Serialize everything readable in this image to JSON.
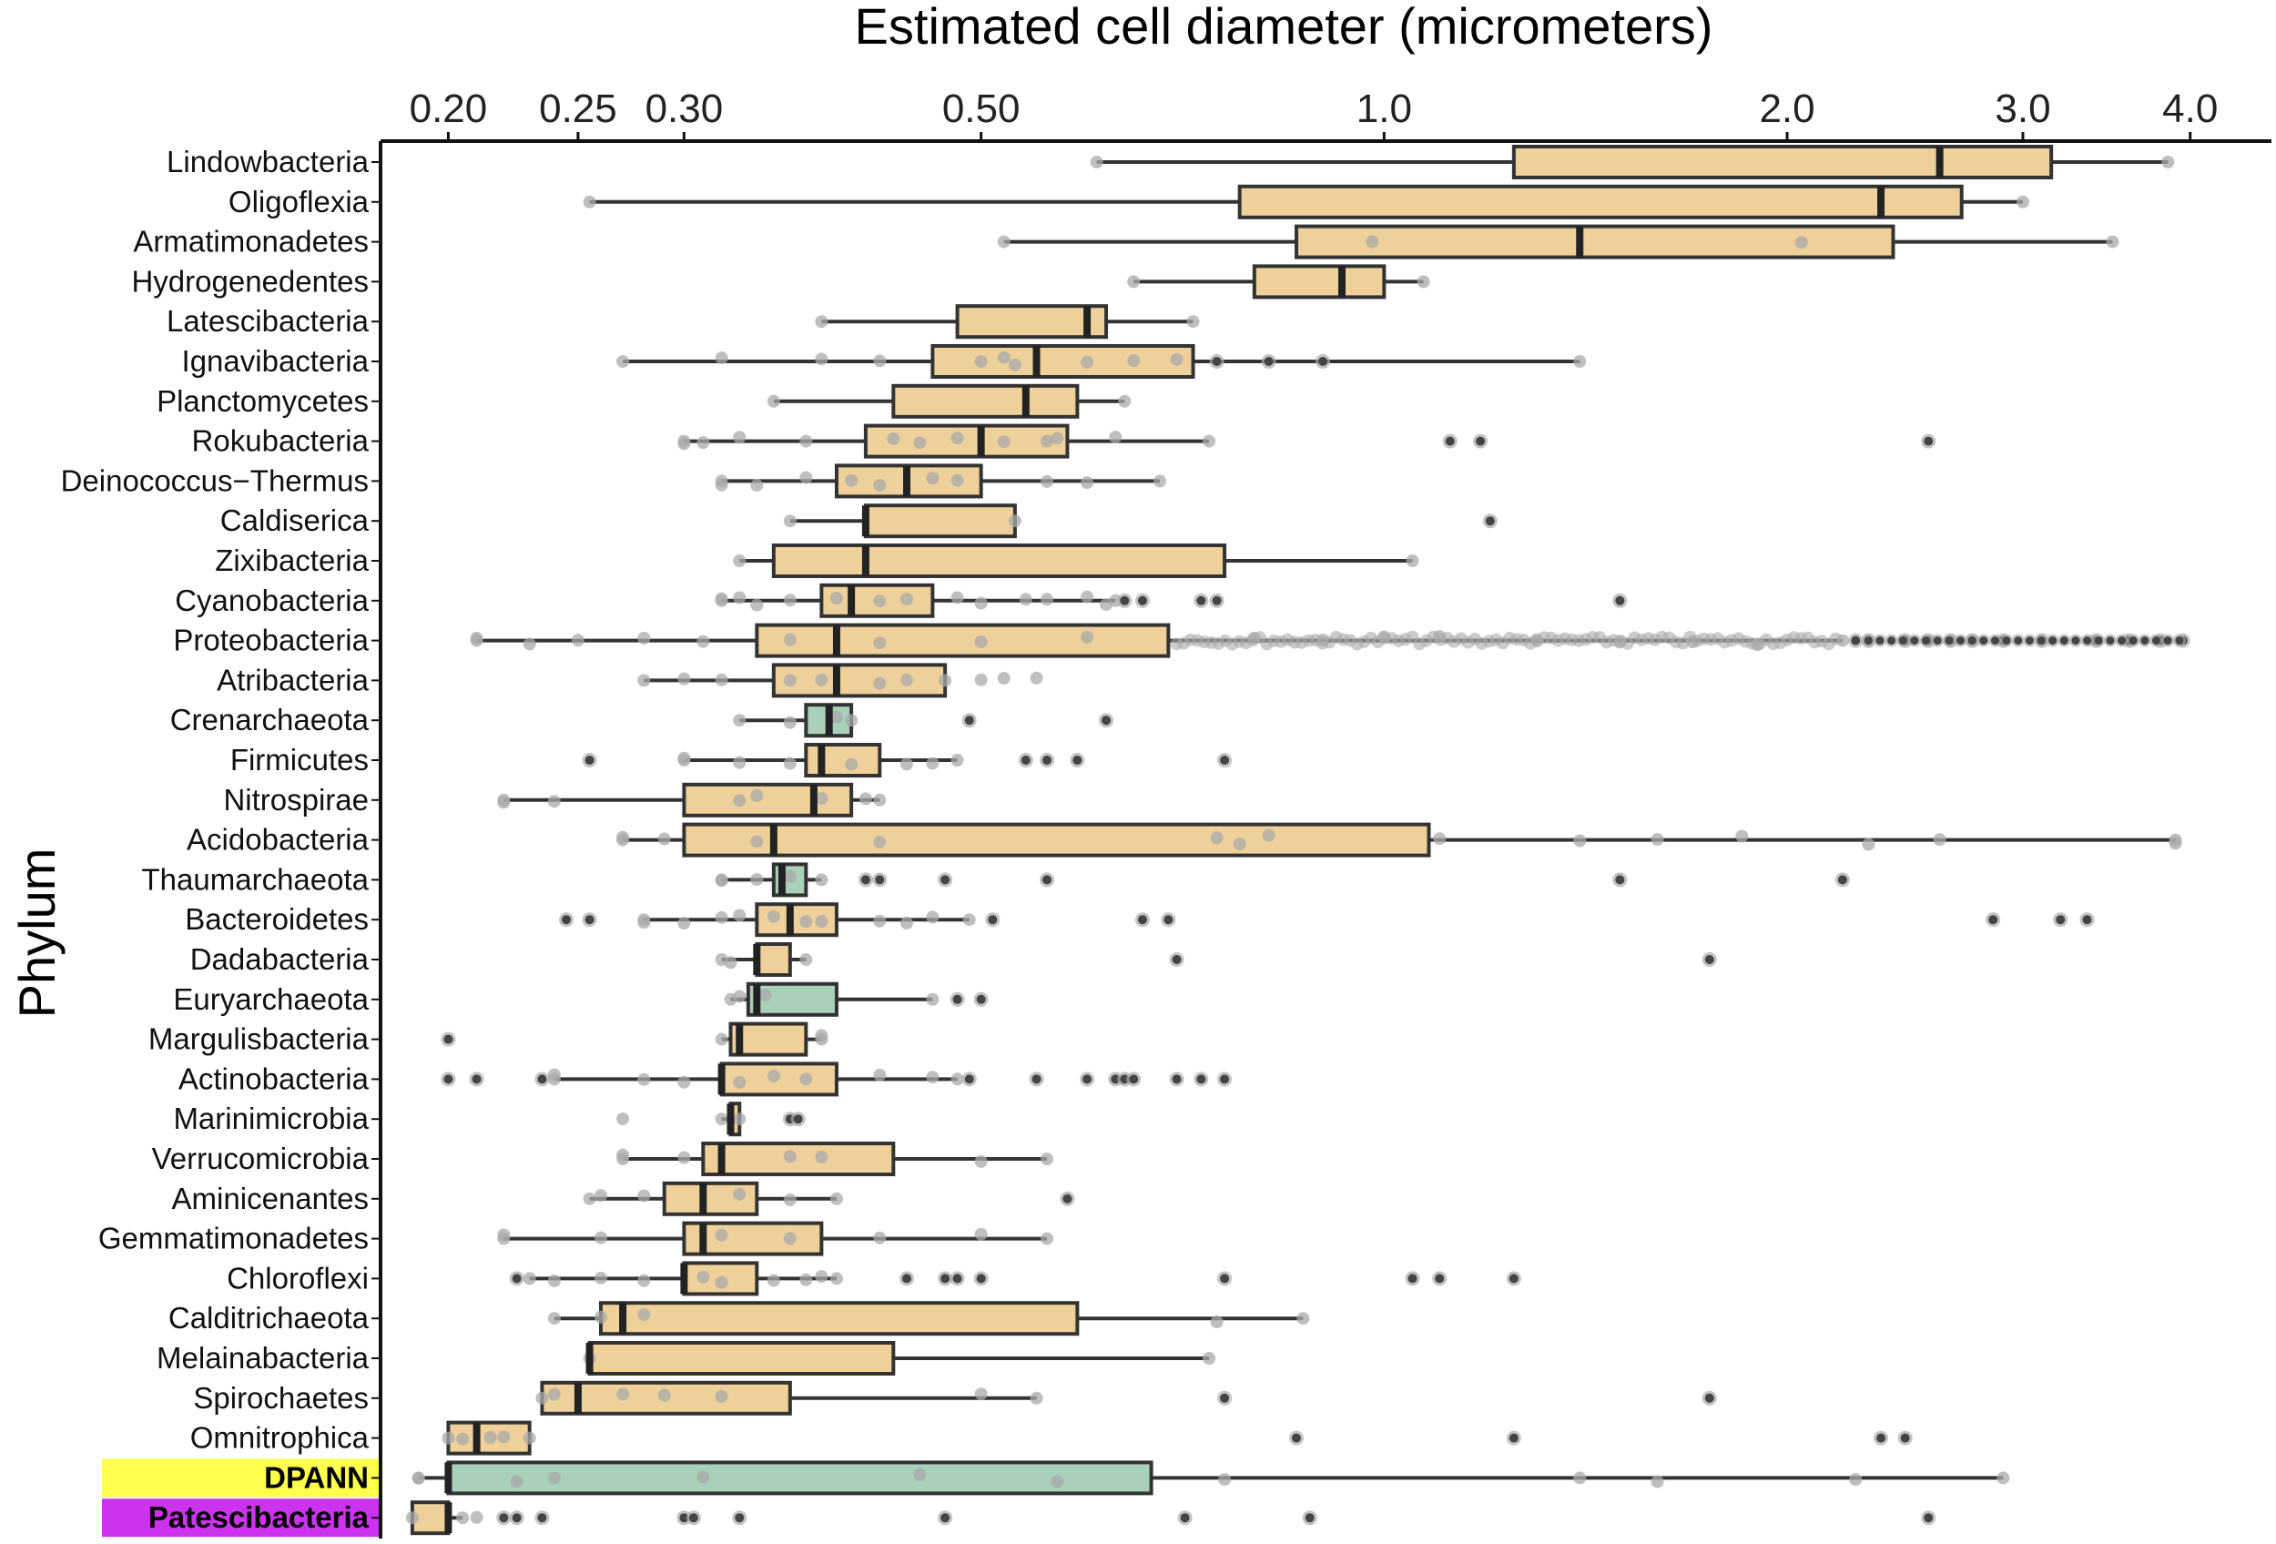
{
  "chart_data": {
    "type": "boxplot",
    "title": "",
    "xlabel": "Estimated cell diameter (micrometers)",
    "ylabel": "Phylum",
    "xscale": "log",
    "xlim": [
      0.178,
      4.6
    ],
    "xticks": [
      0.2,
      0.25,
      0.3,
      0.5,
      1.0,
      2.0,
      3.0,
      4.0
    ],
    "xtick_labels": [
      "0.20",
      "0.25",
      "0.30",
      "0.50",
      "1.0",
      "2.0",
      "3.0",
      "4.0"
    ],
    "axis_position": "top",
    "colors": {
      "bacteria": "#eed19a",
      "archaea": "#a9d0b8",
      "box_edge": "#333333",
      "point": "#aaaaaa",
      "outlier": "#444444",
      "dpann_label_bg": "#ffff4d",
      "patescibacteria_label_bg": "#cc33ee"
    },
    "highlight_labels": {
      "DPANN": "#ffff4d",
      "Patescibacteria": "#cc33ee"
    },
    "categories": [
      {
        "name": "Lindowbacteria",
        "group": "bacteria",
        "whisker_low": 0.61,
        "q1": 1.25,
        "median": 2.6,
        "q3": 3.15,
        "whisker_high": 3.85,
        "points": [],
        "outliers": []
      },
      {
        "name": "Oligoflexia",
        "group": "bacteria",
        "whisker_low": 0.255,
        "q1": 0.78,
        "median": 2.35,
        "q3": 2.7,
        "whisker_high": 3.0,
        "points": [],
        "outliers": []
      },
      {
        "name": "Armatimonadetes",
        "group": "bacteria",
        "whisker_low": 0.52,
        "q1": 0.86,
        "median": 1.4,
        "q3": 2.4,
        "whisker_high": 3.5,
        "points": [
          0.98,
          2.05
        ],
        "outliers": []
      },
      {
        "name": "Hydrogenedentes",
        "group": "bacteria",
        "whisker_low": 0.65,
        "q1": 0.8,
        "median": 0.93,
        "q3": 1.0,
        "whisker_high": 1.07,
        "points": [],
        "outliers": []
      },
      {
        "name": "Latescibacteria",
        "group": "bacteria",
        "whisker_low": 0.38,
        "q1": 0.48,
        "median": 0.6,
        "q3": 0.62,
        "whisker_high": 0.72,
        "points": [],
        "outliers": []
      },
      {
        "name": "Ignavibacteria",
        "group": "bacteria",
        "whisker_low": 0.27,
        "q1": 0.46,
        "median": 0.55,
        "q3": 0.72,
        "whisker_high": 1.4,
        "points": [
          0.32,
          0.38,
          0.42,
          0.5,
          0.52,
          0.53,
          0.6,
          0.65,
          0.7
        ],
        "outliers": [
          0.75,
          0.82,
          0.9
        ]
      },
      {
        "name": "Planctomycetes",
        "group": "bacteria",
        "whisker_low": 0.35,
        "q1": 0.43,
        "median": 0.54,
        "q3": 0.59,
        "whisker_high": 0.64,
        "points": [],
        "outliers": []
      },
      {
        "name": "Rokubacteria",
        "group": "bacteria",
        "whisker_low": 0.3,
        "q1": 0.41,
        "median": 0.5,
        "q3": 0.58,
        "whisker_high": 0.74,
        "points": [
          0.3,
          0.31,
          0.33,
          0.37,
          0.43,
          0.45,
          0.48,
          0.52,
          0.56,
          0.57,
          0.63
        ],
        "outliers": [
          1.12,
          1.18,
          2.55
        ]
      },
      {
        "name": "Deinococcus−Thermus",
        "group": "bacteria",
        "whisker_low": 0.32,
        "q1": 0.39,
        "median": 0.44,
        "q3": 0.5,
        "whisker_high": 0.68,
        "points": [
          0.32,
          0.34,
          0.37,
          0.4,
          0.42,
          0.46,
          0.48,
          0.56,
          0.6
        ],
        "outliers": []
      },
      {
        "name": "Caldiserica",
        "group": "bacteria",
        "whisker_low": 0.36,
        "q1": 0.41,
        "median": 0.41,
        "q3": 0.53,
        "whisker_high": 0.53,
        "points": [],
        "outliers": [
          1.2
        ]
      },
      {
        "name": "Zixibacteria",
        "group": "bacteria",
        "whisker_low": 0.33,
        "q1": 0.35,
        "median": 0.41,
        "q3": 0.76,
        "whisker_high": 1.05,
        "points": [],
        "outliers": []
      },
      {
        "name": "Cyanobacteria",
        "group": "bacteria",
        "whisker_low": 0.32,
        "q1": 0.38,
        "median": 0.4,
        "q3": 0.46,
        "whisker_high": 0.63,
        "points": [
          0.32,
          0.33,
          0.34,
          0.36,
          0.39,
          0.42,
          0.44,
          0.48,
          0.5,
          0.54,
          0.56,
          0.6,
          0.62
        ],
        "outliers": [
          0.64,
          0.66,
          0.73,
          0.75,
          1.5
        ]
      },
      {
        "name": "Proteobacteria",
        "group": "bacteria",
        "whisker_low": 0.21,
        "q1": 0.34,
        "median": 0.39,
        "q3": 0.69,
        "whisker_high": 2.2,
        "points": [
          0.21,
          0.23,
          0.25,
          0.28,
          0.31,
          0.36,
          0.42,
          0.5,
          0.6,
          0.8,
          0.9,
          1.0,
          1.1,
          1.3,
          1.5,
          1.7,
          1.9
        ],
        "outliers": [
          2.25,
          2.3,
          2.45,
          2.55,
          2.65,
          2.75,
          2.9,
          3.1,
          3.4,
          3.6,
          3.8,
          3.95
        ]
      },
      {
        "name": "Atribacteria",
        "group": "bacteria",
        "whisker_low": 0.28,
        "q1": 0.35,
        "median": 0.39,
        "q3": 0.47,
        "whisker_high": 0.47,
        "points": [
          0.3,
          0.32,
          0.36,
          0.38,
          0.42,
          0.44,
          0.5,
          0.52,
          0.55
        ],
        "outliers": []
      },
      {
        "name": "Crenarchaeota",
        "group": "archaea",
        "whisker_low": 0.33,
        "q1": 0.37,
        "median": 0.385,
        "q3": 0.4,
        "whisker_high": 0.4,
        "points": [
          0.36,
          0.39
        ],
        "outliers": [
          0.49,
          0.62
        ]
      },
      {
        "name": "Firmicutes",
        "group": "bacteria",
        "whisker_low": 0.3,
        "q1": 0.37,
        "median": 0.38,
        "q3": 0.42,
        "whisker_high": 0.48,
        "points": [
          0.3,
          0.33,
          0.36,
          0.4,
          0.44,
          0.46
        ],
        "outliers": [
          0.255,
          0.54,
          0.56,
          0.59,
          0.76
        ]
      },
      {
        "name": "Nitrospirae",
        "group": "bacteria",
        "whisker_low": 0.22,
        "q1": 0.3,
        "median": 0.375,
        "q3": 0.4,
        "whisker_high": 0.42,
        "points": [
          0.22,
          0.24,
          0.33,
          0.34,
          0.38,
          0.41
        ],
        "outliers": []
      },
      {
        "name": "Acidobacteria",
        "group": "bacteria",
        "whisker_low": 0.27,
        "q1": 0.3,
        "median": 0.35,
        "q3": 1.08,
        "whisker_high": 3.9,
        "points": [
          0.27,
          0.29,
          0.34,
          0.42,
          0.75,
          0.78,
          0.82,
          1.1,
          1.4,
          1.6,
          1.85,
          2.3,
          2.6,
          3.9
        ],
        "outliers": []
      },
      {
        "name": "Thaumarchaeota",
        "group": "archaea",
        "whisker_low": 0.32,
        "q1": 0.35,
        "median": 0.355,
        "q3": 0.37,
        "whisker_high": 0.38,
        "points": [
          0.32,
          0.34,
          0.36
        ],
        "outliers": [
          0.41,
          0.42,
          0.47,
          0.56,
          1.5,
          2.2
        ]
      },
      {
        "name": "Bacteroidetes",
        "group": "bacteria",
        "whisker_low": 0.28,
        "q1": 0.34,
        "median": 0.36,
        "q3": 0.39,
        "whisker_high": 0.49,
        "points": [
          0.28,
          0.3,
          0.32,
          0.33,
          0.35,
          0.37,
          0.38,
          0.42,
          0.44,
          0.46
        ],
        "outliers": [
          0.245,
          0.255,
          0.51,
          0.66,
          0.69,
          2.85,
          3.2,
          3.35
        ]
      },
      {
        "name": "Dadabacteria",
        "group": "bacteria",
        "whisker_low": 0.32,
        "q1": 0.34,
        "median": 0.34,
        "q3": 0.36,
        "whisker_high": 0.37,
        "points": [
          0.325
        ],
        "outliers": [
          0.7,
          1.75
        ]
      },
      {
        "name": "Euryarchaeota",
        "group": "archaea",
        "whisker_low": 0.325,
        "q1": 0.335,
        "median": 0.34,
        "q3": 0.39,
        "whisker_high": 0.46,
        "points": [
          0.33,
          0.345
        ],
        "outliers": [
          0.48,
          0.5
        ]
      },
      {
        "name": "Margulisbacteria",
        "group": "bacteria",
        "whisker_low": 0.32,
        "q1": 0.325,
        "median": 0.33,
        "q3": 0.37,
        "whisker_high": 0.38,
        "points": [
          0.38
        ],
        "outliers": [
          0.2
        ]
      },
      {
        "name": "Actinobacteria",
        "group": "bacteria",
        "whisker_low": 0.24,
        "q1": 0.32,
        "median": 0.32,
        "q3": 0.39,
        "whisker_high": 0.48,
        "points": [
          0.24,
          0.28,
          0.3,
          0.33,
          0.35,
          0.37,
          0.42,
          0.46
        ],
        "outliers": [
          0.2,
          0.21,
          0.235,
          0.49,
          0.55,
          0.6,
          0.63,
          0.64,
          0.65,
          0.7,
          0.73,
          0.76
        ]
      },
      {
        "name": "Marinimicrobia",
        "group": "bacteria",
        "whisker_low": 0.32,
        "q1": 0.325,
        "median": 0.325,
        "q3": 0.33,
        "whisker_high": 0.33,
        "points": [
          0.27
        ],
        "outliers": [
          0.36,
          0.365
        ]
      },
      {
        "name": "Verrucomicrobia",
        "group": "bacteria",
        "whisker_low": 0.27,
        "q1": 0.31,
        "median": 0.32,
        "q3": 0.43,
        "whisker_high": 0.56,
        "points": [
          0.27,
          0.3,
          0.36,
          0.38,
          0.5
        ],
        "outliers": []
      },
      {
        "name": "Aminicenantes",
        "group": "bacteria",
        "whisker_low": 0.255,
        "q1": 0.29,
        "median": 0.31,
        "q3": 0.34,
        "whisker_high": 0.39,
        "points": [
          0.26,
          0.28,
          0.33,
          0.36
        ],
        "outliers": [
          0.58
        ]
      },
      {
        "name": "Gemmatimonadetes",
        "group": "bacteria",
        "whisker_low": 0.22,
        "q1": 0.3,
        "median": 0.31,
        "q3": 0.38,
        "whisker_high": 0.56,
        "points": [
          0.22,
          0.26,
          0.32,
          0.36,
          0.42,
          0.5
        ],
        "outliers": []
      },
      {
        "name": "Chloroflexi",
        "group": "bacteria",
        "whisker_low": 0.23,
        "q1": 0.3,
        "median": 0.3,
        "q3": 0.34,
        "whisker_high": 0.39,
        "points": [
          0.24,
          0.26,
          0.28,
          0.31,
          0.32,
          0.35,
          0.37,
          0.38
        ],
        "outliers": [
          0.225,
          0.44,
          0.47,
          0.48,
          0.5,
          0.76,
          1.05,
          1.1,
          1.25
        ]
      },
      {
        "name": "Calditrichaeota",
        "group": "bacteria",
        "whisker_low": 0.24,
        "q1": 0.26,
        "median": 0.27,
        "q3": 0.59,
        "whisker_high": 0.87,
        "points": [
          0.26,
          0.28,
          0.75
        ],
        "outliers": []
      },
      {
        "name": "Melainabacteria",
        "group": "bacteria",
        "whisker_low": 0.255,
        "q1": 0.255,
        "median": 0.255,
        "q3": 0.43,
        "whisker_high": 0.74,
        "points": [],
        "outliers": []
      },
      {
        "name": "Spirochaetes",
        "group": "bacteria",
        "whisker_low": 0.235,
        "q1": 0.235,
        "median": 0.25,
        "q3": 0.36,
        "whisker_high": 0.55,
        "points": [
          0.24,
          0.27,
          0.29,
          0.32,
          0.5
        ],
        "outliers": [
          0.76,
          1.75
        ]
      },
      {
        "name": "Omnitrophica",
        "group": "bacteria",
        "whisker_low": 0.2,
        "q1": 0.2,
        "median": 0.21,
        "q3": 0.23,
        "whisker_high": 0.23,
        "points": [
          0.205,
          0.215,
          0.22
        ],
        "outliers": [
          0.86,
          1.25,
          2.35,
          2.45
        ]
      },
      {
        "name": "DPANN",
        "group": "archaea",
        "whisker_low": 0.19,
        "q1": 0.2,
        "median": 0.2,
        "q3": 0.67,
        "whisker_high": 2.9,
        "points": [
          0.19,
          0.225,
          0.24,
          0.31,
          0.45,
          0.57,
          0.76,
          1.4,
          1.6,
          2.25
        ],
        "outliers": []
      },
      {
        "name": "Patescibacteria",
        "group": "bacteria",
        "whisker_low": 0.188,
        "q1": 0.188,
        "median": 0.2,
        "q3": 0.2,
        "whisker_high": 0.205,
        "points": [
          0.21
        ],
        "outliers": [
          0.22,
          0.225,
          0.235,
          0.3,
          0.305,
          0.33,
          0.47,
          0.71,
          0.88,
          2.55
        ]
      }
    ]
  }
}
